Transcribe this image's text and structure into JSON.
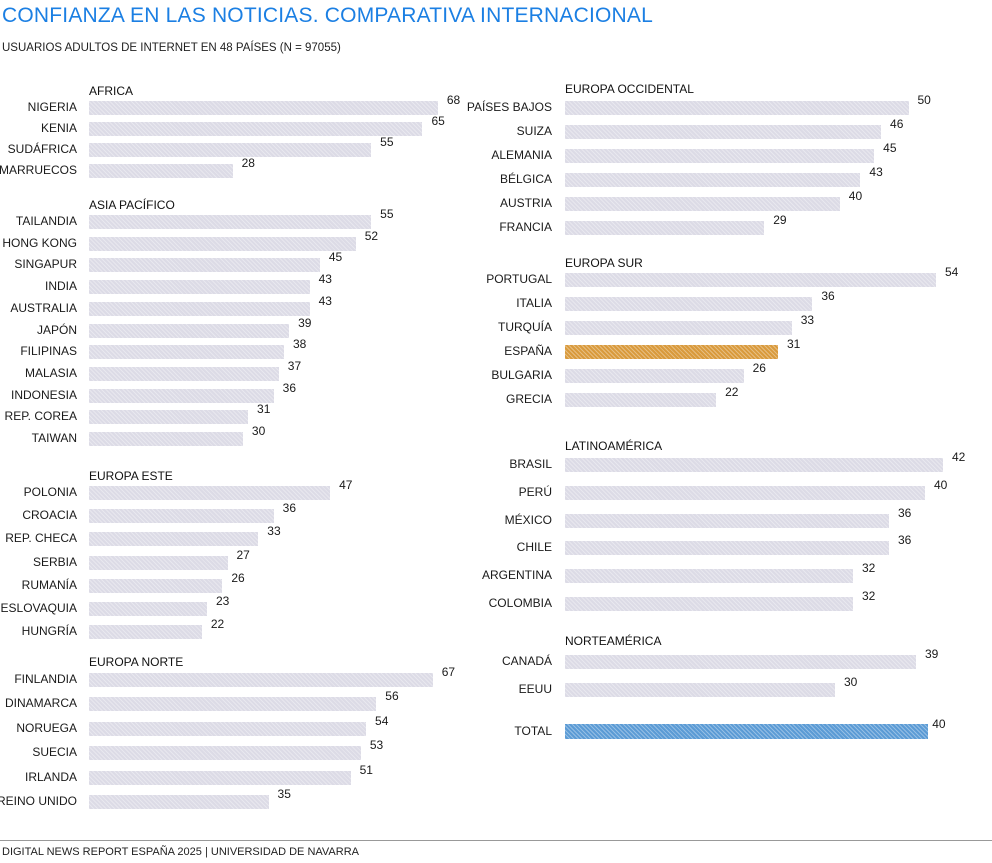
{
  "chart_data": {
    "type": "bar",
    "orientation": "horizontal",
    "title": "CONFIANZA EN LAS NOTICIAS. COMPARATIVA INTERNACIONAL",
    "subtitle": "USUARIOS ADULTOS DE INTERNET EN 48 PAÍSES (N = 97055)",
    "colors": {
      "default": "#dcdbe6",
      "highlight": "#d99a3c",
      "total": "#5b9bd5",
      "title": "#1b7fe3"
    },
    "groups": [
      {
        "name": "AFRICA",
        "categories": [
          "NIGERIA",
          "KENIA",
          "SUDÁFRICA",
          "MARRUECOS"
        ],
        "values": [
          68,
          65,
          55,
          28
        ]
      },
      {
        "name": "ASIA PACÍFICO",
        "categories": [
          "TAILANDIA",
          "HONG KONG",
          "SINGAPUR",
          "INDIA",
          "AUSTRALIA",
          "JAPÓN",
          "FILIPINAS",
          "MALASIA",
          "INDONESIA",
          "REP. COREA",
          "TAIWAN"
        ],
        "values": [
          55,
          52,
          45,
          43,
          43,
          39,
          38,
          37,
          36,
          31,
          30
        ]
      },
      {
        "name": "EUROPA ESTE",
        "categories": [
          "POLONIA",
          "CROACIA",
          "REP. CHECA",
          "SERBIA",
          "RUMANÍA",
          "ESLOVAQUIA",
          "HUNGRÍA"
        ],
        "values": [
          47,
          36,
          33,
          27,
          26,
          23,
          22
        ]
      },
      {
        "name": "EUROPA NORTE",
        "categories": [
          "FINLANDIA",
          "DINAMARCA",
          "NORUEGA",
          "SUECIA",
          "IRLANDA",
          "REINO UNIDO"
        ],
        "values": [
          67,
          56,
          54,
          53,
          51,
          35
        ]
      },
      {
        "name": "EUROPA OCCIDENTAL",
        "categories": [
          "PAÍSES BAJOS",
          "SUIZA",
          "ALEMANIA",
          "BÉLGICA",
          "AUSTRIA",
          "FRANCIA"
        ],
        "values": [
          50,
          46,
          45,
          43,
          40,
          29
        ]
      },
      {
        "name": "EUROPA SUR",
        "categories": [
          "PORTUGAL",
          "ITALIA",
          "TURQUÍA",
          "ESPAÑA",
          "BULGARIA",
          "GRECIA"
        ],
        "values": [
          54,
          36,
          33,
          31,
          26,
          22
        ],
        "highlight": "ESPAÑA"
      },
      {
        "name": "LATINOAMÉRICA",
        "categories": [
          "BRASIL",
          "PERÚ",
          "MÉXICO",
          "CHILE",
          "ARGENTINA",
          "COLOMBIA"
        ],
        "values": [
          42,
          40,
          36,
          36,
          32,
          32
        ]
      },
      {
        "name": "NORTEAMÉRICA",
        "categories": [
          "CANADÁ",
          "EEUU"
        ],
        "values": [
          39,
          30
        ]
      },
      {
        "name": "",
        "categories": [
          "TOTAL"
        ],
        "values": [
          40
        ],
        "is_total": true
      }
    ]
  },
  "footer": "DIGITAL NEWS REPORT ESPAÑA 2025 | UNIVERSIDAD DE NAVARRA"
}
